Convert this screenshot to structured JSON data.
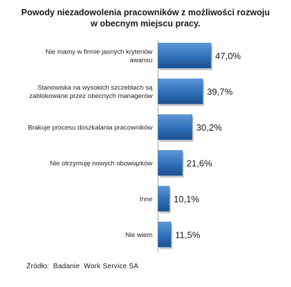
{
  "chart_data": {
    "type": "bar",
    "orientation": "horizontal",
    "title_lines": [
      "Powody niezadowolenia pracowników z możliwości rozwoju",
      "w obecnym miejscu pracy."
    ],
    "categories": [
      [
        "Nie mamy w firmie jasnych kryteriów",
        "awansu"
      ],
      [
        "Stanowiska na wysokich szczeblach są",
        "zablokowane przez obecnych managerów"
      ],
      [
        "Brakuje procesu doszkalania pracowników"
      ],
      [
        "Nie otrzymuję nowych obowiązków"
      ],
      [
        "Inne"
      ],
      [
        "Nie wiem"
      ]
    ],
    "values": [
      47.0,
      39.7,
      30.2,
      21.6,
      10.1,
      11.5
    ],
    "value_labels": [
      "47,0%",
      "39,7%",
      "30,2%",
      "21,6%",
      "10,1%",
      "11,5%"
    ],
    "xlim": [
      0,
      50
    ],
    "grid": false,
    "legend": "none",
    "bar_color": "#2e6fb8",
    "source": "Źródło:  Badanie  Work Service SA"
  }
}
